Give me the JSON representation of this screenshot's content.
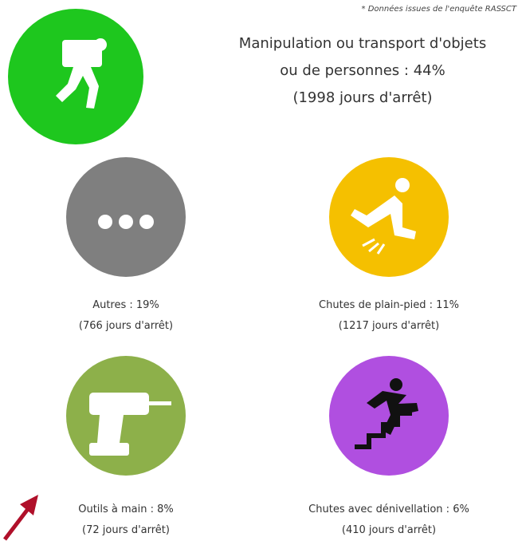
{
  "note": "* Données issues de l'enquête RASSCT",
  "items": [
    {
      "lines": [
        "Manipulation ou transport d'objets",
        "ou de personnes : 44%",
        "(1998 jours d'arrêt)"
      ]
    },
    {
      "lines": [
        "Autres : 19%",
        "(766 jours d'arrêt)"
      ]
    },
    {
      "lines": [
        "Chutes de plain-pied : 11%",
        "(1217 jours d'arrêt)"
      ]
    },
    {
      "lines": [
        "Outils à main : 8%",
        "(72 jours d'arrêt)"
      ]
    },
    {
      "lines": [
        "Chutes avec dénivellation : 6%",
        "(410 jours d'arrêt)"
      ]
    }
  ]
}
